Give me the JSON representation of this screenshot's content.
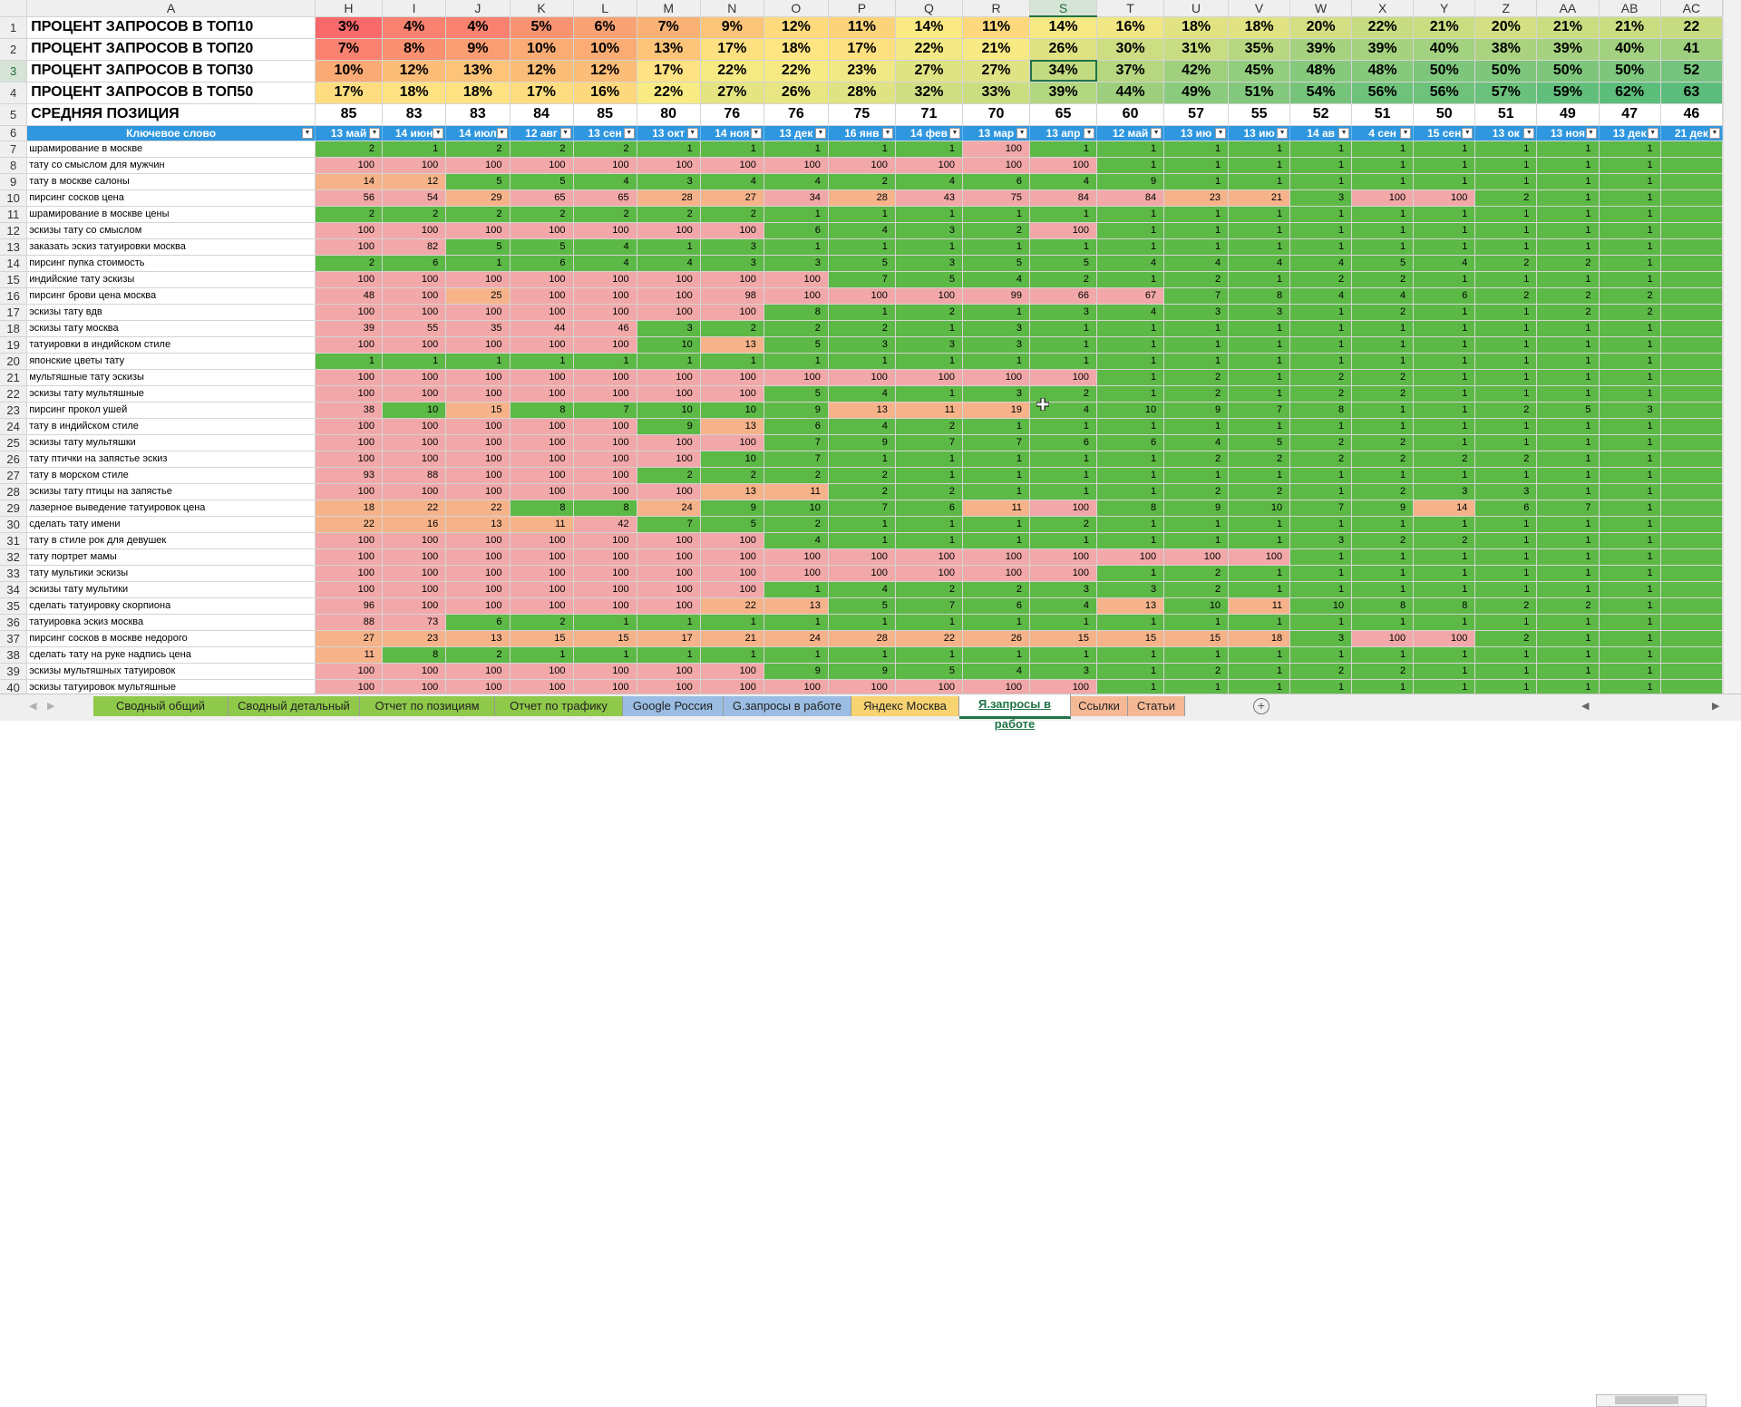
{
  "columns": [
    "A",
    "H",
    "I",
    "J",
    "K",
    "L",
    "M",
    "N",
    "O",
    "P",
    "Q",
    "R",
    "S",
    "T",
    "U",
    "V",
    "W",
    "X",
    "Y",
    "Z",
    "AA",
    "AB",
    "AC"
  ],
  "selected_column": "S",
  "selected_row": "3",
  "summary_rows": [
    {
      "row": "1",
      "label": "ПРОЦЕНТ ЗАПРОСОВ В ТОП10",
      "values": [
        "3%",
        "4%",
        "4%",
        "5%",
        "6%",
        "7%",
        "9%",
        "12%",
        "11%",
        "14%",
        "11%",
        "14%",
        "16%",
        "18%",
        "18%",
        "20%",
        "22%",
        "21%",
        "20%",
        "21%",
        "21%",
        "22"
      ],
      "colors": [
        "#f8696b",
        "#f8816f",
        "#f8816f",
        "#f89371",
        "#f9a273",
        "#fab175",
        "#fbc478",
        "#fddb7d",
        "#fcd37b",
        "#fbe983",
        "#fdd87c",
        "#f6e984",
        "#f0e784",
        "#e1e383",
        "#e1e383",
        "#d3df82",
        "#c7dc81",
        "#cbdd81",
        "#d3df82",
        "#cbdd81",
        "#cbdd81",
        "#c7dc81"
      ]
    },
    {
      "row": "2",
      "label": "ПРОЦЕНТ ЗАПРОСОВ В ТОП20",
      "values": [
        "7%",
        "8%",
        "9%",
        "10%",
        "10%",
        "13%",
        "17%",
        "18%",
        "17%",
        "22%",
        "21%",
        "26%",
        "30%",
        "31%",
        "35%",
        "39%",
        "39%",
        "40%",
        "38%",
        "39%",
        "40%",
        "41"
      ],
      "colors": [
        "#f8816f",
        "#f9906f",
        "#fa9d72",
        "#faac74",
        "#faac74",
        "#fcc479",
        "#fde080",
        "#fee583",
        "#fde080",
        "#f3e984",
        "#f7ea84",
        "#dfe283",
        "#cddd82",
        "#c8dc81",
        "#b7d780",
        "#a6d27f",
        "#a6d27f",
        "#a2d17f",
        "#abd37f",
        "#a6d27f",
        "#a2d17f",
        "#9ed07e"
      ]
    },
    {
      "row": "3",
      "label": "ПРОЦЕНТ ЗАПРОСОВ В ТОП30",
      "values": [
        "10%",
        "12%",
        "13%",
        "12%",
        "12%",
        "17%",
        "22%",
        "22%",
        "23%",
        "27%",
        "27%",
        "34%",
        "37%",
        "42%",
        "45%",
        "48%",
        "48%",
        "50%",
        "50%",
        "50%",
        "50%",
        "52"
      ],
      "colors": [
        "#faaa74",
        "#fbbd77",
        "#fcc379",
        "#fbbd77",
        "#fbbd77",
        "#fee283",
        "#f6ea84",
        "#f6ea84",
        "#f0e884",
        "#e0e383",
        "#e0e383",
        "#c2da80",
        "#b6d680",
        "#a0d07e",
        "#93cd7e",
        "#86c97d",
        "#86c97d",
        "#7dc67c",
        "#7dc67c",
        "#7dc67c",
        "#7dc67c",
        "#75c37c"
      ]
    },
    {
      "row": "4",
      "label": "ПРОЦЕНТ ЗАПРОСОВ В ТОП50",
      "values": [
        "17%",
        "18%",
        "18%",
        "17%",
        "16%",
        "22%",
        "27%",
        "26%",
        "28%",
        "32%",
        "33%",
        "39%",
        "44%",
        "49%",
        "51%",
        "54%",
        "56%",
        "56%",
        "57%",
        "59%",
        "62%",
        "63"
      ],
      "colors": [
        "#fddd7f",
        "#fee282",
        "#fee282",
        "#fddd7f",
        "#fdd87d",
        "#f8eb84",
        "#e4e483",
        "#e8e583",
        "#e0e383",
        "#d0de82",
        "#cbdd81",
        "#b3d680",
        "#9ecf7e",
        "#8acb7d",
        "#82c87d",
        "#76c47c",
        "#6ec27b",
        "#6ec27b",
        "#6ac17b",
        "#62bf7b",
        "#5dbd7b",
        "#5bbc7b"
      ]
    },
    {
      "row": "5",
      "label": "СРЕДНЯЯ ПОЗИЦИЯ",
      "values": [
        "85",
        "83",
        "83",
        "84",
        "85",
        "80",
        "76",
        "76",
        "75",
        "71",
        "70",
        "65",
        "60",
        "57",
        "55",
        "52",
        "51",
        "50",
        "51",
        "49",
        "47",
        "46"
      ],
      "colors": []
    }
  ],
  "header_row": {
    "row": "6",
    "keyword_label": "Ключевое слово",
    "dates": [
      "13 май",
      "14 июн",
      "14 июл",
      "12 авг",
      "13 сен",
      "13 окт",
      "14 ноя",
      "13 дек",
      "16 янв",
      "14 фев",
      "13 мар",
      "13 апр",
      "12 май",
      "13 ию",
      "13 ию",
      "14 ав",
      "4 сен",
      "15 сен",
      "13 ок",
      "13 ноя",
      "13 дек",
      "21 дек"
    ]
  },
  "data_rows": [
    {
      "row": "7",
      "keyword": "шрамирование в москве",
      "values": [
        "2",
        "1",
        "2",
        "2",
        "2",
        "1",
        "1",
        "1",
        "1",
        "1",
        "100",
        "1",
        "1",
        "1",
        "1",
        "1",
        "1",
        "1",
        "1",
        "1",
        "1",
        ""
      ]
    },
    {
      "row": "8",
      "keyword": "тату со смыслом для мужчин",
      "values": [
        "100",
        "100",
        "100",
        "100",
        "100",
        "100",
        "100",
        "100",
        "100",
        "100",
        "100",
        "100",
        "1",
        "1",
        "1",
        "1",
        "1",
        "1",
        "1",
        "1",
        "1",
        ""
      ]
    },
    {
      "row": "9",
      "keyword": "тату в москве салоны",
      "values": [
        "14",
        "12",
        "5",
        "5",
        "4",
        "3",
        "4",
        "4",
        "2",
        "4",
        "6",
        "4",
        "9",
        "1",
        "1",
        "1",
        "1",
        "1",
        "1",
        "1",
        "1",
        ""
      ]
    },
    {
      "row": "10",
      "keyword": "пирсинг сосков цена",
      "values": [
        "56",
        "54",
        "29",
        "65",
        "65",
        "28",
        "27",
        "34",
        "28",
        "43",
        "75",
        "84",
        "84",
        "23",
        "21",
        "3",
        "100",
        "100",
        "2",
        "1",
        "1",
        ""
      ]
    },
    {
      "row": "11",
      "keyword": "шрамирование в москве цены",
      "values": [
        "2",
        "2",
        "2",
        "2",
        "2",
        "2",
        "2",
        "1",
        "1",
        "1",
        "1",
        "1",
        "1",
        "1",
        "1",
        "1",
        "1",
        "1",
        "1",
        "1",
        "1",
        ""
      ]
    },
    {
      "row": "12",
      "keyword": "эскизы тату со смыслом",
      "values": [
        "100",
        "100",
        "100",
        "100",
        "100",
        "100",
        "100",
        "6",
        "4",
        "3",
        "2",
        "100",
        "1",
        "1",
        "1",
        "1",
        "1",
        "1",
        "1",
        "1",
        "1",
        ""
      ]
    },
    {
      "row": "13",
      "keyword": "заказать эскиз татуировки москва",
      "values": [
        "100",
        "82",
        "5",
        "5",
        "4",
        "1",
        "3",
        "1",
        "1",
        "1",
        "1",
        "1",
        "1",
        "1",
        "1",
        "1",
        "1",
        "1",
        "1",
        "1",
        "1",
        ""
      ]
    },
    {
      "row": "14",
      "keyword": "пирсинг пупка стоимость",
      "values": [
        "2",
        "6",
        "1",
        "6",
        "4",
        "4",
        "3",
        "3",
        "5",
        "3",
        "5",
        "5",
        "4",
        "4",
        "4",
        "4",
        "5",
        "4",
        "2",
        "2",
        "1",
        ""
      ]
    },
    {
      "row": "15",
      "keyword": "индийские тату эскизы",
      "values": [
        "100",
        "100",
        "100",
        "100",
        "100",
        "100",
        "100",
        "100",
        "7",
        "5",
        "4",
        "2",
        "1",
        "2",
        "1",
        "2",
        "2",
        "1",
        "1",
        "1",
        "1",
        ""
      ]
    },
    {
      "row": "16",
      "keyword": "пирсинг брови цена москва",
      "values": [
        "48",
        "100",
        "25",
        "100",
        "100",
        "100",
        "98",
        "100",
        "100",
        "100",
        "99",
        "66",
        "67",
        "7",
        "8",
        "4",
        "4",
        "6",
        "2",
        "2",
        "2",
        ""
      ]
    },
    {
      "row": "17",
      "keyword": "эскизы тату вдв",
      "values": [
        "100",
        "100",
        "100",
        "100",
        "100",
        "100",
        "100",
        "8",
        "1",
        "2",
        "1",
        "3",
        "4",
        "3",
        "3",
        "1",
        "2",
        "1",
        "1",
        "2",
        "2",
        ""
      ]
    },
    {
      "row": "18",
      "keyword": "эскизы тату москва",
      "values": [
        "39",
        "55",
        "35",
        "44",
        "46",
        "3",
        "2",
        "2",
        "2",
        "1",
        "3",
        "1",
        "1",
        "1",
        "1",
        "1",
        "1",
        "1",
        "1",
        "1",
        "1",
        ""
      ]
    },
    {
      "row": "19",
      "keyword": "татуировки в индийском стиле",
      "values": [
        "100",
        "100",
        "100",
        "100",
        "100",
        "10",
        "13",
        "5",
        "3",
        "3",
        "3",
        "1",
        "1",
        "1",
        "1",
        "1",
        "1",
        "1",
        "1",
        "1",
        "1",
        ""
      ]
    },
    {
      "row": "20",
      "keyword": "японские цветы тату",
      "values": [
        "1",
        "1",
        "1",
        "1",
        "1",
        "1",
        "1",
        "1",
        "1",
        "1",
        "1",
        "1",
        "1",
        "1",
        "1",
        "1",
        "1",
        "1",
        "1",
        "1",
        "1",
        ""
      ]
    },
    {
      "row": "21",
      "keyword": "мультяшные тату эскизы",
      "values": [
        "100",
        "100",
        "100",
        "100",
        "100",
        "100",
        "100",
        "100",
        "100",
        "100",
        "100",
        "100",
        "1",
        "2",
        "1",
        "2",
        "2",
        "1",
        "1",
        "1",
        "1",
        ""
      ]
    },
    {
      "row": "22",
      "keyword": "эскизы тату мультяшные",
      "values": [
        "100",
        "100",
        "100",
        "100",
        "100",
        "100",
        "100",
        "5",
        "4",
        "1",
        "3",
        "2",
        "1",
        "2",
        "1",
        "2",
        "2",
        "1",
        "1",
        "1",
        "1",
        ""
      ]
    },
    {
      "row": "23",
      "keyword": "пирсинг прокол ушей",
      "values": [
        "38",
        "10",
        "15",
        "8",
        "7",
        "10",
        "10",
        "9",
        "13",
        "11",
        "19",
        "4",
        "10",
        "9",
        "7",
        "8",
        "1",
        "1",
        "2",
        "5",
        "3",
        ""
      ]
    },
    {
      "row": "24",
      "keyword": "тату в индийском стиле",
      "values": [
        "100",
        "100",
        "100",
        "100",
        "100",
        "9",
        "13",
        "6",
        "4",
        "2",
        "1",
        "1",
        "1",
        "1",
        "1",
        "1",
        "1",
        "1",
        "1",
        "1",
        "1",
        ""
      ]
    },
    {
      "row": "25",
      "keyword": "эскизы тату мультяшки",
      "values": [
        "100",
        "100",
        "100",
        "100",
        "100",
        "100",
        "100",
        "7",
        "9",
        "7",
        "7",
        "6",
        "6",
        "4",
        "5",
        "2",
        "2",
        "1",
        "1",
        "1",
        "1",
        ""
      ]
    },
    {
      "row": "26",
      "keyword": "тату птички на запястье эскиз",
      "values": [
        "100",
        "100",
        "100",
        "100",
        "100",
        "100",
        "10",
        "7",
        "1",
        "1",
        "1",
        "1",
        "1",
        "2",
        "2",
        "2",
        "2",
        "2",
        "2",
        "1",
        "1",
        ""
      ]
    },
    {
      "row": "27",
      "keyword": "тату в морском стиле",
      "values": [
        "93",
        "88",
        "100",
        "100",
        "100",
        "2",
        "2",
        "2",
        "2",
        "1",
        "1",
        "1",
        "1",
        "1",
        "1",
        "1",
        "1",
        "1",
        "1",
        "1",
        "1",
        ""
      ]
    },
    {
      "row": "28",
      "keyword": "эскизы тату птицы на запястье",
      "values": [
        "100",
        "100",
        "100",
        "100",
        "100",
        "100",
        "13",
        "11",
        "2",
        "2",
        "1",
        "1",
        "1",
        "2",
        "2",
        "1",
        "2",
        "3",
        "3",
        "1",
        "1",
        ""
      ]
    },
    {
      "row": "29",
      "keyword": "лазерное выведение татуировок цена",
      "values": [
        "18",
        "22",
        "22",
        "8",
        "8",
        "24",
        "9",
        "10",
        "7",
        "6",
        "11",
        "100",
        "8",
        "9",
        "10",
        "7",
        "9",
        "14",
        "6",
        "7",
        "1",
        ""
      ]
    },
    {
      "row": "30",
      "keyword": "сделать тату имени",
      "values": [
        "22",
        "16",
        "13",
        "11",
        "42",
        "7",
        "5",
        "2",
        "1",
        "1",
        "1",
        "2",
        "1",
        "1",
        "1",
        "1",
        "1",
        "1",
        "1",
        "1",
        "1",
        ""
      ]
    },
    {
      "row": "31",
      "keyword": "тату в стиле рок для девушек",
      "values": [
        "100",
        "100",
        "100",
        "100",
        "100",
        "100",
        "100",
        "4",
        "1",
        "1",
        "1",
        "1",
        "1",
        "1",
        "1",
        "3",
        "2",
        "2",
        "1",
        "1",
        "1",
        ""
      ]
    },
    {
      "row": "32",
      "keyword": "тату портрет мамы",
      "values": [
        "100",
        "100",
        "100",
        "100",
        "100",
        "100",
        "100",
        "100",
        "100",
        "100",
        "100",
        "100",
        "100",
        "100",
        "100",
        "1",
        "1",
        "1",
        "1",
        "1",
        "1",
        ""
      ]
    },
    {
      "row": "33",
      "keyword": "тату мультики эскизы",
      "values": [
        "100",
        "100",
        "100",
        "100",
        "100",
        "100",
        "100",
        "100",
        "100",
        "100",
        "100",
        "100",
        "1",
        "2",
        "1",
        "1",
        "1",
        "1",
        "1",
        "1",
        "1",
        ""
      ]
    },
    {
      "row": "34",
      "keyword": "эскизы тату мультики",
      "values": [
        "100",
        "100",
        "100",
        "100",
        "100",
        "100",
        "100",
        "1",
        "4",
        "2",
        "2",
        "3",
        "3",
        "2",
        "1",
        "1",
        "1",
        "1",
        "1",
        "1",
        "1",
        ""
      ]
    },
    {
      "row": "35",
      "keyword": "сделать татуировку скорпиона",
      "values": [
        "96",
        "100",
        "100",
        "100",
        "100",
        "100",
        "22",
        "13",
        "5",
        "7",
        "6",
        "4",
        "13",
        "10",
        "11",
        "10",
        "8",
        "8",
        "2",
        "2",
        "1",
        ""
      ]
    },
    {
      "row": "36",
      "keyword": "татуировка эскиз москва",
      "values": [
        "88",
        "73",
        "6",
        "2",
        "1",
        "1",
        "1",
        "1",
        "1",
        "1",
        "1",
        "1",
        "1",
        "1",
        "1",
        "1",
        "1",
        "1",
        "1",
        "1",
        "1",
        ""
      ]
    },
    {
      "row": "37",
      "keyword": "пирсинг сосков в москве недорого",
      "values": [
        "27",
        "23",
        "13",
        "15",
        "15",
        "17",
        "21",
        "24",
        "28",
        "22",
        "26",
        "15",
        "15",
        "15",
        "18",
        "3",
        "100",
        "100",
        "2",
        "1",
        "1",
        ""
      ]
    },
    {
      "row": "38",
      "keyword": "сделать тату на руке надпись цена",
      "values": [
        "11",
        "8",
        "2",
        "1",
        "1",
        "1",
        "1",
        "1",
        "1",
        "1",
        "1",
        "1",
        "1",
        "1",
        "1",
        "1",
        "1",
        "1",
        "1",
        "1",
        "1",
        ""
      ]
    },
    {
      "row": "39",
      "keyword": "эскизы мультяшных татуировок",
      "values": [
        "100",
        "100",
        "100",
        "100",
        "100",
        "100",
        "100",
        "9",
        "9",
        "5",
        "4",
        "3",
        "1",
        "2",
        "1",
        "2",
        "2",
        "1",
        "1",
        "1",
        "1",
        ""
      ]
    },
    {
      "row": "40",
      "keyword": "эскизы татуировок мультяшные",
      "values": [
        "100",
        "100",
        "100",
        "100",
        "100",
        "100",
        "100",
        "100",
        "100",
        "100",
        "100",
        "100",
        "1",
        "1",
        "1",
        "1",
        "1",
        "1",
        "1",
        "1",
        "1",
        ""
      ]
    }
  ],
  "tabs": [
    {
      "label": "Сводный общий",
      "color": "#8fc94a"
    },
    {
      "label": "Сводный детальный",
      "color": "#8fc94a"
    },
    {
      "label": "Отчет по позициям",
      "color": "#8fc94a"
    },
    {
      "label": "Отчет по трафику",
      "color": "#8fc94a"
    },
    {
      "label": "Google Россия",
      "color": "#9bbde3"
    },
    {
      "label": "G.запросы в работе",
      "color": "#9bbde3"
    },
    {
      "label": "Яндекс Москва",
      "color": "#f8d372"
    },
    {
      "label": "Я.запросы в работе",
      "color": "#f8d372",
      "active": true
    },
    {
      "label": "Ссылки",
      "color": "#f4b895"
    },
    {
      "label": "Статьи",
      "color": "#f4b895"
    }
  ],
  "colors": {
    "green": "#5cb946",
    "pink": "#f2a8a8",
    "orange": "#f6b38a",
    "header_blue": "#2e97e0",
    "accent": "#217346"
  }
}
